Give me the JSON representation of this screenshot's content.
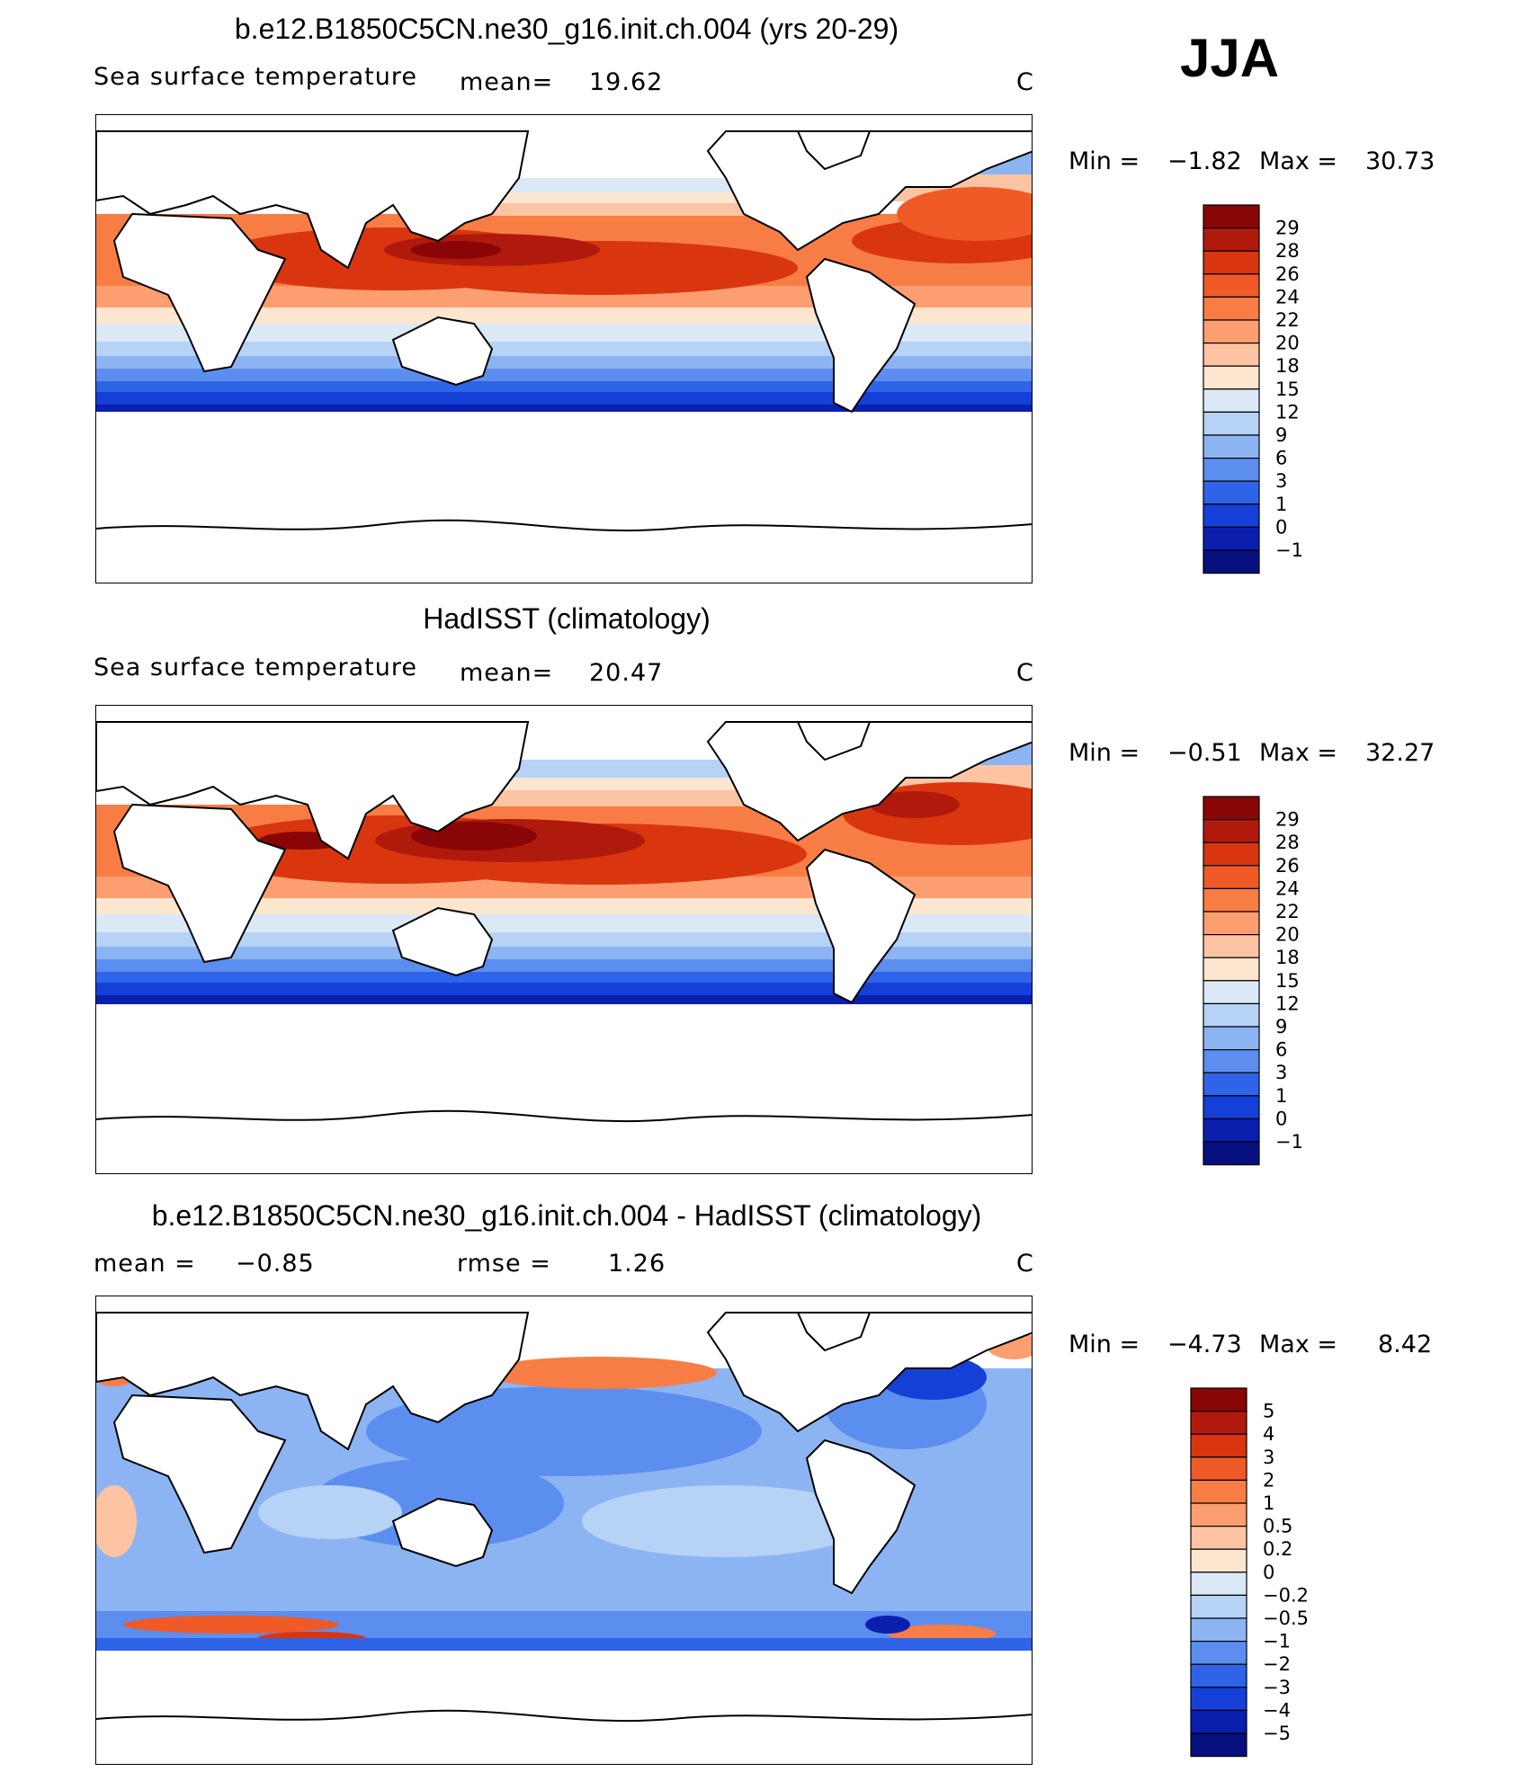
{
  "season": "JJA",
  "panels": [
    {
      "title": "b.e12.B1850C5CN.ne30_g16.init.ch.004 (yrs 20-29)",
      "left_label": "Sea surface temperature",
      "mid_label": "mean=",
      "mid_value": "19.62",
      "right_label": "C",
      "min_label": "Min =",
      "min_value": "−1.82",
      "max_label": "Max =",
      "max_value": "30.73",
      "colorbar": {
        "labels": [
          "29",
          "28",
          "26",
          "24",
          "22",
          "20",
          "18",
          "15",
          "12",
          "9",
          "6",
          "3",
          "1",
          "0",
          "−1"
        ],
        "colors": [
          "#8a0606",
          "#b01a0d",
          "#d9360f",
          "#f05a26",
          "#f77d45",
          "#fc9e70",
          "#fcc4a2",
          "#fde6cf",
          "#dbe9f6",
          "#b6d2f5",
          "#8db4f2",
          "#5c8ef0",
          "#2f64e8",
          "#1540d8",
          "#0a1fae",
          "#06107e"
        ]
      }
    },
    {
      "title": "HadISST (climatology)",
      "left_label": "Sea surface temperature",
      "mid_label": "mean=",
      "mid_value": "20.47",
      "right_label": "C",
      "min_label": "Min =",
      "min_value": "−0.51",
      "max_label": "Max =",
      "max_value": "32.27",
      "colorbar": {
        "labels": [
          "29",
          "28",
          "26",
          "24",
          "22",
          "20",
          "18",
          "15",
          "12",
          "9",
          "6",
          "3",
          "1",
          "0",
          "−1"
        ],
        "colors": [
          "#8a0606",
          "#b01a0d",
          "#d9360f",
          "#f05a26",
          "#f77d45",
          "#fc9e70",
          "#fcc4a2",
          "#fde6cf",
          "#dbe9f6",
          "#b6d2f5",
          "#8db4f2",
          "#5c8ef0",
          "#2f64e8",
          "#1540d8",
          "#0a1fae",
          "#06107e"
        ]
      }
    },
    {
      "title": "b.e12.B1850C5CN.ne30_g16.init.ch.004 - HadISST (climatology)",
      "left_label": "mean =",
      "left_value": "−0.85",
      "mid_label": "rmse =",
      "mid_value": "1.26",
      "right_label": "C",
      "min_label": "Min =",
      "min_value": "−4.73",
      "max_label": "Max =",
      "max_value": "8.42",
      "colorbar": {
        "labels": [
          "5",
          "4",
          "3",
          "2",
          "1",
          "0.5",
          "0.2",
          "0",
          "−0.2",
          "−0.5",
          "−1",
          "−2",
          "−3",
          "−4",
          "−5"
        ],
        "colors": [
          "#8a0606",
          "#b01a0d",
          "#d9360f",
          "#f05a26",
          "#f77d45",
          "#fc9e70",
          "#fcc4a2",
          "#fde6cf",
          "#dbe9f6",
          "#b6d2f5",
          "#8db4f2",
          "#5c8ef0",
          "#2f64e8",
          "#1540d8",
          "#0a1fae",
          "#06107e"
        ]
      }
    }
  ],
  "colors": {
    "warm_max": "#8a0606",
    "warm_mid": "#f05a26",
    "neutral": "#fde6cf",
    "cool_mid": "#5c8ef0",
    "cool_max": "#06107e",
    "land": "#ffffff",
    "coast": "#000000"
  }
}
